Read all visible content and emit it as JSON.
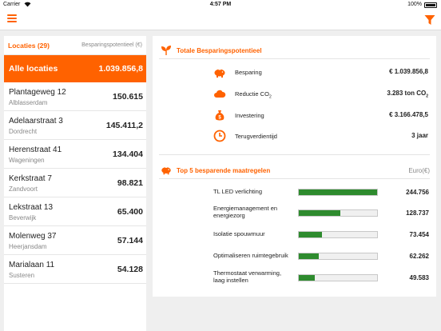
{
  "status": {
    "carrier": "Carrier",
    "wifi_icon": "wifi-icon",
    "time": "4:57 PM",
    "battery": "100%"
  },
  "nav": {
    "menu_icon": "hamburger-icon",
    "filter_icon": "filter-icon",
    "accent": "#ff6200"
  },
  "locations": {
    "title": "Locaties (29)",
    "column": "Besparingspotentieel (€)",
    "all": {
      "name": "Alle locaties",
      "value": "1.039.856,8"
    },
    "items": [
      {
        "name": "Plantageweg 12",
        "city": "Alblasserdam",
        "value": "150.615"
      },
      {
        "name": "Adelaarstraat 3",
        "city": "Dordrecht",
        "value": "145.411,2"
      },
      {
        "name": "Herenstraat 41",
        "city": "Wageningen",
        "value": "134.404"
      },
      {
        "name": "Kerkstraat  7",
        "city": "Zandvoort",
        "value": "98.821"
      },
      {
        "name": "Lekstraat  13",
        "city": "Beverwijk",
        "value": "65.400"
      },
      {
        "name": "Molenweg 37",
        "city": "Heerjansdam",
        "value": "57.144"
      },
      {
        "name": "Marialaan 11",
        "city": "Susteren",
        "value": "54.128"
      }
    ]
  },
  "potential": {
    "title": "Totale Besparingspotentieel",
    "icon": "plant-icon",
    "metrics": [
      {
        "icon": "piggy-bank-icon",
        "label": "Besparing",
        "value": "€ 1.039.856,8"
      },
      {
        "icon": "cloud-icon",
        "label": "Reductie CO",
        "label_sub": "2",
        "value": "3.283 ton CO",
        "value_sub": "2"
      },
      {
        "icon": "money-bag-icon",
        "label": "Investering",
        "value": "€ 3.166.478,5"
      },
      {
        "icon": "clock-icon",
        "label": "Terugverdientijd",
        "value": "3 jaar"
      }
    ]
  },
  "top5": {
    "title": "Top 5 besparende maatregelen",
    "icon": "piggy-bank-icon",
    "unit": "Euro(€)",
    "bar_color": "#2e8b2e",
    "items": [
      {
        "label": "TL LED verlichting",
        "value": "244.756",
        "amount": 244756
      },
      {
        "label": "Energiemanagement en energiezorg",
        "value": "128.737",
        "amount": 128737
      },
      {
        "label": "Isolatie spouwmuur",
        "value": "73.454",
        "amount": 73454
      },
      {
        "label": "Optimaliseren ruimtegebruik",
        "value": "62.262",
        "amount": 62262
      },
      {
        "label": "Thermostaat verwarming, laag instellen",
        "value": "49.583",
        "amount": 49583
      }
    ]
  }
}
